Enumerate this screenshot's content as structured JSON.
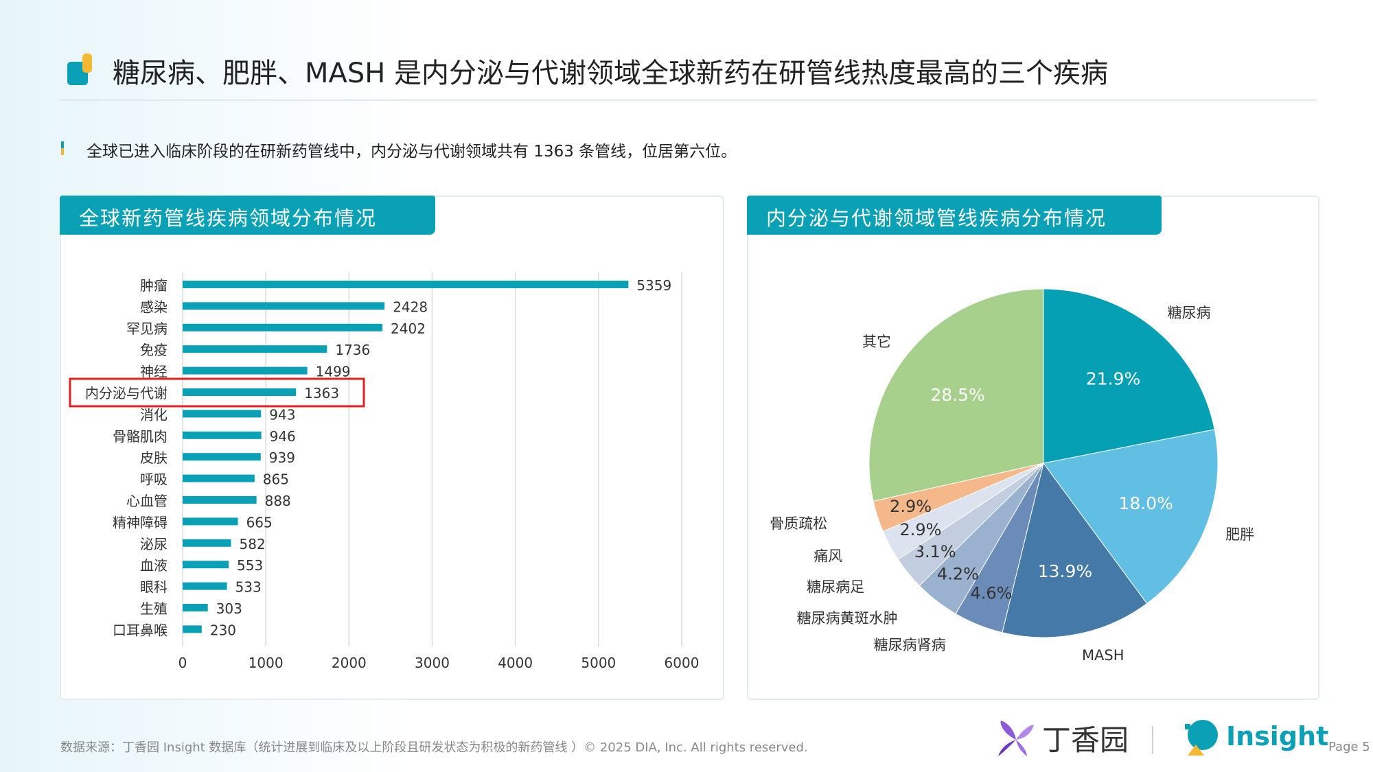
{
  "title": "糖尿病、肥胖、MASH 是内分泌与代谢领域全球新药在研管线热度最高的三个疾病",
  "subtitle": "全球已进入临床阶段的在研新药管线中，内分泌与代谢领域共有 1363 条管线，位居第六位。",
  "footer": {
    "source": "数据来源：丁香园 Insight 数据库（统计进展到临床及以上阶段且研发状态为积极的新药管线 ）© 2025 DIA, Inc. All rights reserved.",
    "brand1": "丁香园",
    "brand2": "Insight",
    "page": "Page 5"
  },
  "colors": {
    "accent": "#0aa0b5",
    "highlight": "#e02020"
  },
  "chart_data": [
    {
      "type": "bar",
      "orientation": "horizontal",
      "title": "全球新药管线疾病领域分布情况",
      "categories": [
        "肿瘤",
        "感染",
        "罕见病",
        "免疫",
        "神经",
        "内分泌与代谢",
        "消化",
        "骨骼肌肉",
        "皮肤",
        "呼吸",
        "心血管",
        "精神障碍",
        "泌尿",
        "血液",
        "眼科",
        "生殖",
        "口耳鼻喉"
      ],
      "values": [
        5359,
        2428,
        2402,
        1736,
        1499,
        1363,
        943,
        946,
        939,
        865,
        888,
        665,
        582,
        553,
        533,
        303,
        230
      ],
      "xlim": [
        0,
        6000
      ],
      "xticks": [
        "0",
        "1000",
        "2000",
        "3000",
        "4000",
        "5000",
        "6000"
      ],
      "highlighted": "内分泌与代谢",
      "grid": "vertical",
      "color": "#0aa0b5"
    },
    {
      "type": "pie",
      "title": "内分泌与代谢领域管线疾病分布情况",
      "slices": [
        {
          "label": "糖尿病",
          "value": 21.9,
          "text": "21.9%",
          "color": "#06a0b5"
        },
        {
          "label": "肥胖",
          "value": 18.0,
          "text": "18.0%",
          "color": "#62bfe4"
        },
        {
          "label": "MASH",
          "value": 13.9,
          "text": "13.9%",
          "color": "#4579a8"
        },
        {
          "label": "糖尿病肾病",
          "value": 4.6,
          "text": "4.6%",
          "color": "#6b8bb8"
        },
        {
          "label": "糖尿病黄斑水肿",
          "value": 4.2,
          "text": "4.2%",
          "color": "#9bb1d0"
        },
        {
          "label": "糖尿病足",
          "value": 3.1,
          "text": "3.1%",
          "color": "#c2cde0"
        },
        {
          "label": "痛风",
          "value": 2.9,
          "text": "2.9%",
          "color": "#dde3ee"
        },
        {
          "label": "骨质疏松",
          "value": 2.9,
          "text": "2.9%",
          "color": "#f5b88a"
        },
        {
          "label": "其它",
          "value": 28.5,
          "text": "28.5%",
          "color": "#a8d08d"
        }
      ]
    }
  ]
}
